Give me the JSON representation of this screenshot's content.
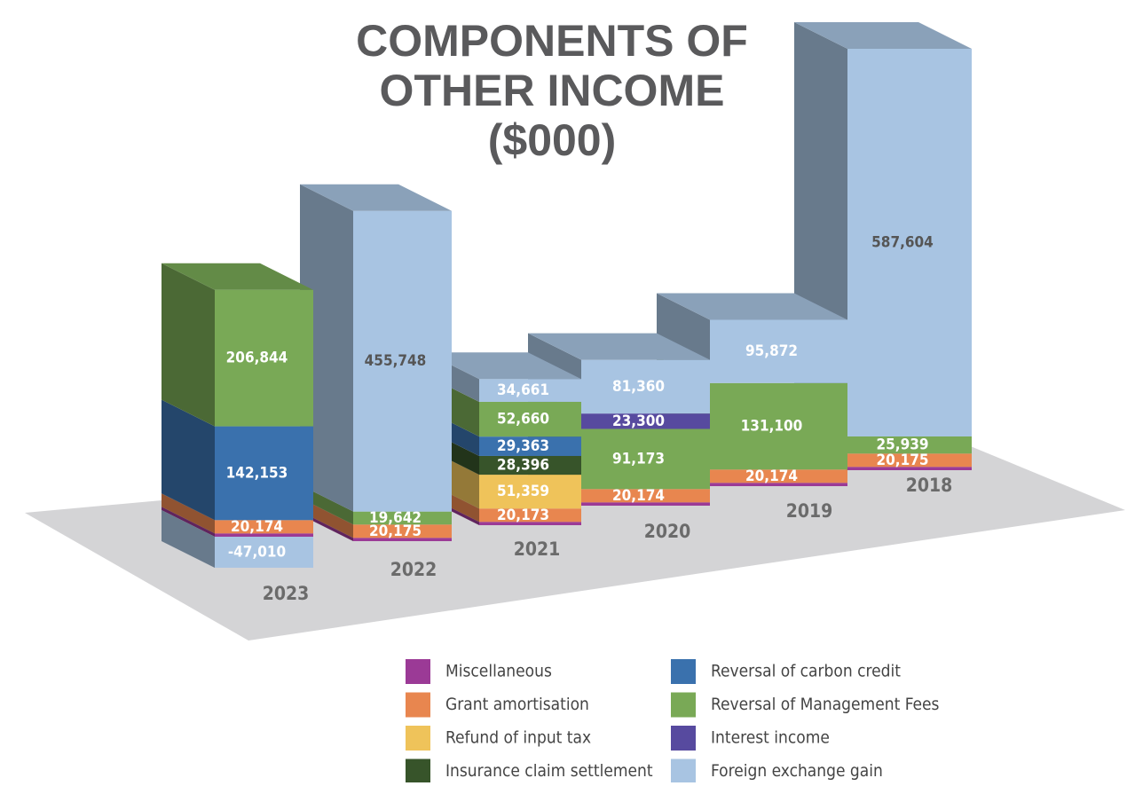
{
  "chart_data": {
    "type": "bar3d",
    "title": [
      "COMPONENTS OF",
      "OTHER INCOME",
      "($000)"
    ],
    "categories": [
      "2023",
      "2022",
      "2021",
      "2020",
      "2019",
      "2018"
    ],
    "stacked": true,
    "series": [
      {
        "name": "Miscellaneous",
        "color": "#9b3a96",
        "values": [
          5000,
          5000,
          5000,
          5000,
          5000,
          5000
        ],
        "value_labels": [
          null,
          null,
          null,
          null,
          null,
          null
        ]
      },
      {
        "name": "Grant amortisation",
        "color": "#e8864f",
        "values": [
          20174,
          20175,
          20173,
          20174,
          20174,
          20175
        ],
        "value_labels": [
          "20,174",
          "20,175",
          "20,173",
          "20,174",
          "20,174",
          "20,175"
        ]
      },
      {
        "name": "Refund of input tax",
        "color": "#efc35a",
        "values": [
          null,
          null,
          51359,
          null,
          null,
          null
        ],
        "value_labels": [
          null,
          null,
          "51,359",
          null,
          null,
          null
        ]
      },
      {
        "name": "Insurance claim settlement",
        "color": "#37542a",
        "values": [
          null,
          null,
          28396,
          null,
          null,
          null
        ],
        "value_labels": [
          null,
          null,
          "28,396",
          null,
          null,
          null
        ]
      },
      {
        "name": "Reversal of carbon credit",
        "color": "#3a71ad",
        "values": [
          142153,
          null,
          29363,
          null,
          null,
          null
        ],
        "value_labels": [
          "142,153",
          null,
          "29,363",
          null,
          null,
          null
        ]
      },
      {
        "name": "Reversal of Management Fees",
        "color": "#79a956",
        "values": [
          206844,
          19642,
          52660,
          91173,
          131100,
          25939
        ],
        "value_labels": [
          "206,844",
          "19,642",
          "52,660",
          "91,173",
          "131,100",
          "25,939"
        ]
      },
      {
        "name": "Interest income",
        "color": "#574a9f",
        "values": [
          null,
          null,
          null,
          23300,
          null,
          null
        ],
        "value_labels": [
          null,
          null,
          null,
          "23,300",
          null,
          null
        ]
      },
      {
        "name": "Foreign exchange gain",
        "color": "#a8c4e2",
        "values": [
          -47010,
          455748,
          34661,
          81360,
          95872,
          587604
        ],
        "value_labels": [
          "-47,010",
          "455,748",
          "34,661",
          "81,360",
          "95,872",
          "587,604"
        ]
      }
    ]
  }
}
